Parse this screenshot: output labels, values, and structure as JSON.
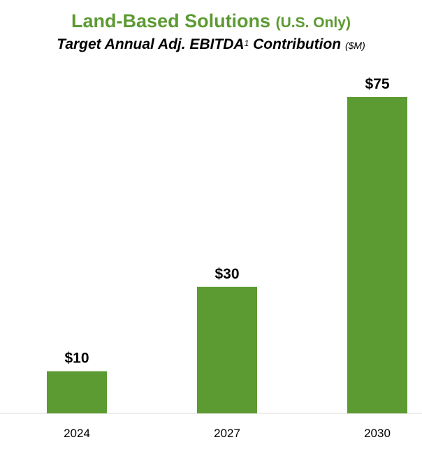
{
  "header": {
    "title": "Land-Based Solutions",
    "title_suffix": "(U.S. Only)",
    "subtitle": "Target Annual Adj. EBITDA",
    "subtitle_sup": "1",
    "subtitle_rest": "Contribution",
    "subtitle_units": "($M)"
  },
  "chart_data": {
    "type": "bar",
    "categories": [
      "2024",
      "2027",
      "2030"
    ],
    "values": [
      10,
      30,
      75
    ],
    "data_labels": [
      "$10",
      "$30",
      "$75"
    ],
    "title": "Land-Based Solutions (U.S. Only)",
    "subtitle": "Target Annual Adj. EBITDA1 Contribution ($M)",
    "xlabel": "",
    "ylabel": "",
    "ylim": [
      0,
      75
    ],
    "grid": false,
    "legend": "none",
    "bar_color": "#5c9a32"
  }
}
